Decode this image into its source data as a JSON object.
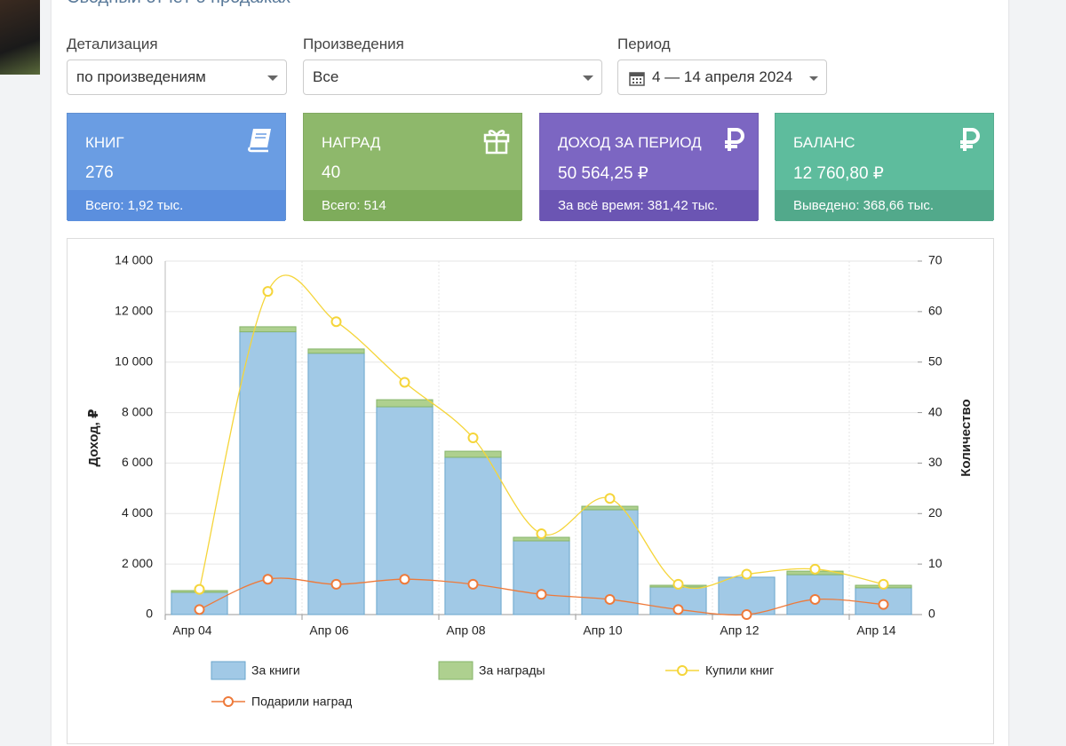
{
  "header": {
    "title": "Сводный отчёт о продажах"
  },
  "filters": [
    {
      "label": "Детализация",
      "value": "по произведениям"
    },
    {
      "label": "Произведения",
      "value": "Все"
    },
    {
      "label": "Период",
      "value": "4 — 14 апреля 2024"
    }
  ],
  "cards": [
    {
      "title": "КНИГ",
      "value": "276",
      "footer": "Всего: 1,92 тыс."
    },
    {
      "title": "НАГРАД",
      "value": "40",
      "footer": "Всего: 514"
    },
    {
      "title": "ДОХОД ЗА ПЕРИОД",
      "value": "50 564,25 ₽",
      "footer": "За всё время: 381,42 тыс."
    },
    {
      "title": "БАЛАНС",
      "value": "12 760,80 ₽",
      "footer": "Выведено: 368,66 тыс."
    }
  ],
  "chart_data": {
    "type": "bar",
    "categories": [
      "Апр 04",
      null,
      "Апр 06",
      null,
      "Апр 08",
      null,
      "Апр 10",
      null,
      "Апр 12",
      null,
      "Апр 14"
    ],
    "series": [
      {
        "name": "За книги",
        "type": "bar",
        "color": "#a1c9e6",
        "values": [
          880,
          11200,
          10350,
          8230,
          6230,
          2920,
          4150,
          1090,
          1480,
          1580,
          1060
        ]
      },
      {
        "name": "За награды",
        "type": "bar",
        "color": "#aed08f",
        "values": [
          70,
          200,
          170,
          280,
          240,
          140,
          140,
          70,
          0,
          140,
          100
        ]
      },
      {
        "name": "Купили книг",
        "type": "line",
        "axis": "y2",
        "color": "#f5d53a",
        "values": [
          5,
          64,
          58,
          46,
          35,
          16,
          23,
          6,
          8,
          9,
          6
        ]
      },
      {
        "name": "Подарили наград",
        "type": "line",
        "axis": "y2",
        "color": "#ee7a3a",
        "values": [
          1,
          7,
          6,
          7,
          6,
          4,
          3,
          1,
          0,
          3,
          2
        ]
      }
    ],
    "ylabel": "Доход, ₽",
    "y2label": "Количество",
    "ylim": [
      0,
      14000
    ],
    "yticks": [
      0,
      {
        "value": 2000,
        "label": "2 000"
      },
      {
        "value": 4000,
        "label": "4 000"
      },
      {
        "value": 6000,
        "label": "6 000"
      },
      {
        "value": 8000,
        "label": "8 000"
      },
      {
        "value": 10000,
        "label": "10 000"
      },
      {
        "value": 12000,
        "label": "12 000"
      },
      {
        "value": 14000,
        "label": "14 000"
      }
    ],
    "y2lim": [
      0,
      70
    ],
    "y2ticks": [
      0,
      10,
      20,
      30,
      40,
      50,
      60,
      70
    ],
    "grid": true,
    "legend": "bottom"
  }
}
